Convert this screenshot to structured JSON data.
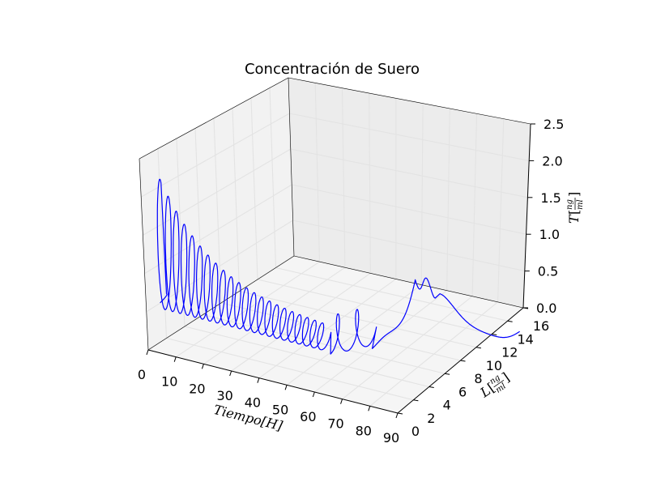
{
  "chart_data": {
    "type": "line",
    "title": "Concentración de Suero",
    "xlabel": "Tiempo[H]",
    "ylabel_main": "L",
    "ylabel_num": "ng",
    "ylabel_den": "ml",
    "zlabel_main": "T",
    "zlabel_num": "ng",
    "zlabel_den": "ml",
    "xlim": [
      0,
      90
    ],
    "ylim": [
      0,
      16
    ],
    "zlim": [
      0,
      2.5
    ],
    "x_ticks": [
      "0",
      "10",
      "20",
      "30",
      "40",
      "50",
      "60",
      "70",
      "80",
      "90"
    ],
    "y_ticks": [
      "0",
      "2",
      "4",
      "6",
      "8",
      "10",
      "12",
      "14",
      "16"
    ],
    "z_ticks": [
      "0.0",
      "0.5",
      "1.0",
      "1.5",
      "2.0",
      "2.5"
    ],
    "grid": true,
    "series": [
      {
        "color": "#0000ff",
        "x_range": [
          0,
          90
        ],
        "description_points": [
          {
            "t": 0,
            "L": 0.5,
            "T": 0.5
          },
          {
            "t": 5,
            "L": 1.5,
            "T": 2.0
          },
          {
            "t": 10,
            "L": 1.2,
            "T": 1.4
          },
          {
            "t": 20,
            "L": 1.5,
            "T": 1.1
          },
          {
            "t": 35,
            "L": 1.5,
            "T": 0.9
          },
          {
            "t": 50,
            "L": 1.5,
            "T": 0.7
          },
          {
            "t": 60,
            "L": 1.5,
            "T": 0.5
          },
          {
            "t": 65,
            "L": 3.0,
            "T": 0.8
          },
          {
            "t": 75,
            "L": 6.0,
            "T": 1.1
          },
          {
            "t": 80,
            "L": 7.0,
            "T": 0.9
          },
          {
            "t": 85,
            "L": 11.0,
            "T": 0.1
          },
          {
            "t": 90,
            "L": 13.0,
            "T": 0.05
          }
        ]
      }
    ]
  }
}
